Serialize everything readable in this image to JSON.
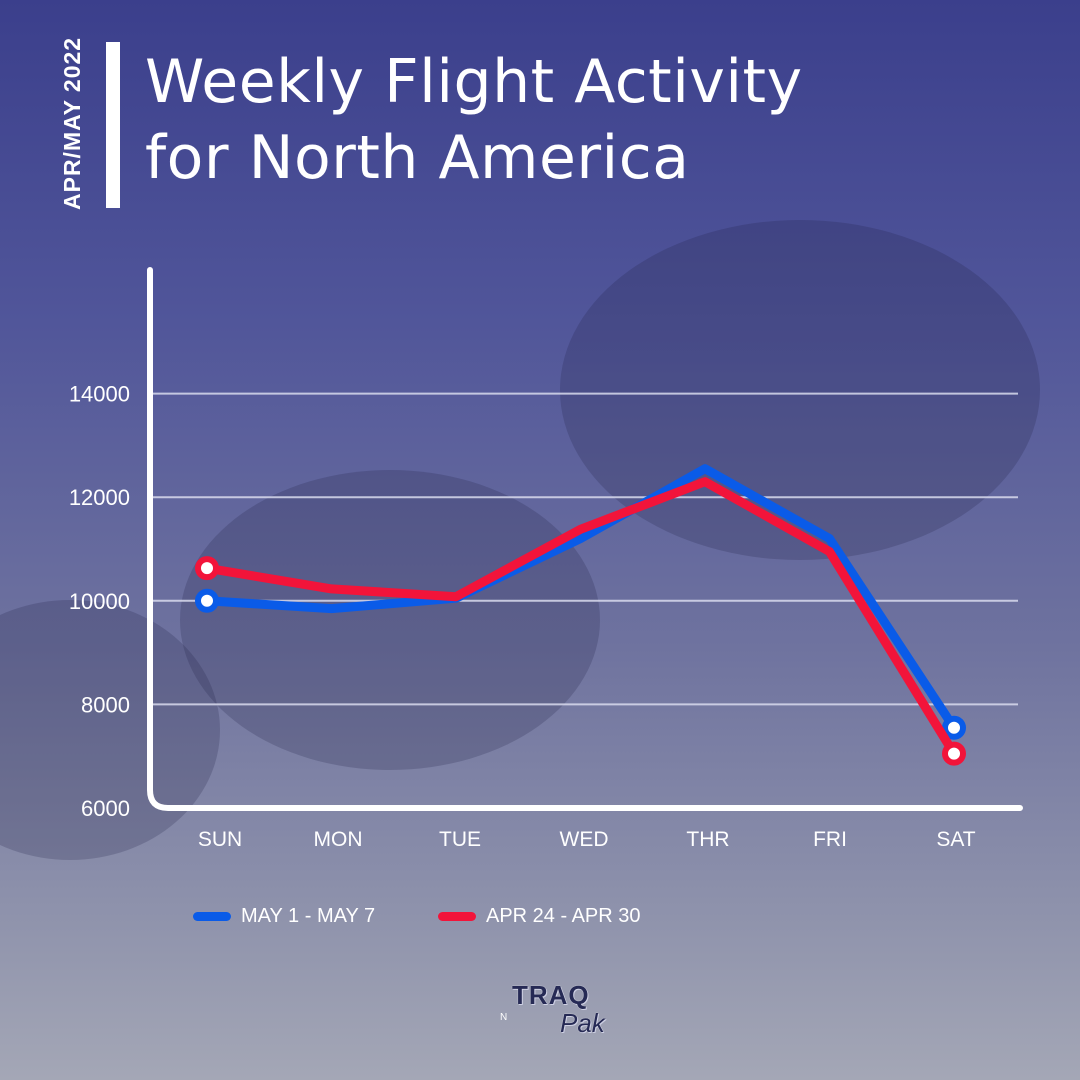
{
  "header": {
    "date_tag": "APR/MAY 2022",
    "title_line1": "Weekly Flight Activity",
    "title_line2": "for North America"
  },
  "chart_data": {
    "type": "line",
    "title": "Weekly Flight Activity for North America",
    "categories": [
      "SUN",
      "MON",
      "TUE",
      "WED",
      "THR",
      "FRI",
      "SAT"
    ],
    "ylim": [
      6000,
      16000
    ],
    "yticks": [
      6000,
      8000,
      10000,
      12000,
      14000
    ],
    "grid": true,
    "legend_position": "bottom",
    "series": [
      {
        "name": "MAY 1 - MAY 7",
        "color": "#0a5be8",
        "values": [
          10000,
          9850,
          10050,
          11200,
          12550,
          11200,
          7550
        ]
      },
      {
        "name": "APR 24 - APR 30",
        "color": "#f2143a",
        "values": [
          10630,
          10230,
          10080,
          11380,
          12300,
          10950,
          7050
        ]
      }
    ]
  },
  "logo": {
    "brand_top": "TRAQ",
    "brand_bottom": "Pak",
    "mark": "N"
  }
}
